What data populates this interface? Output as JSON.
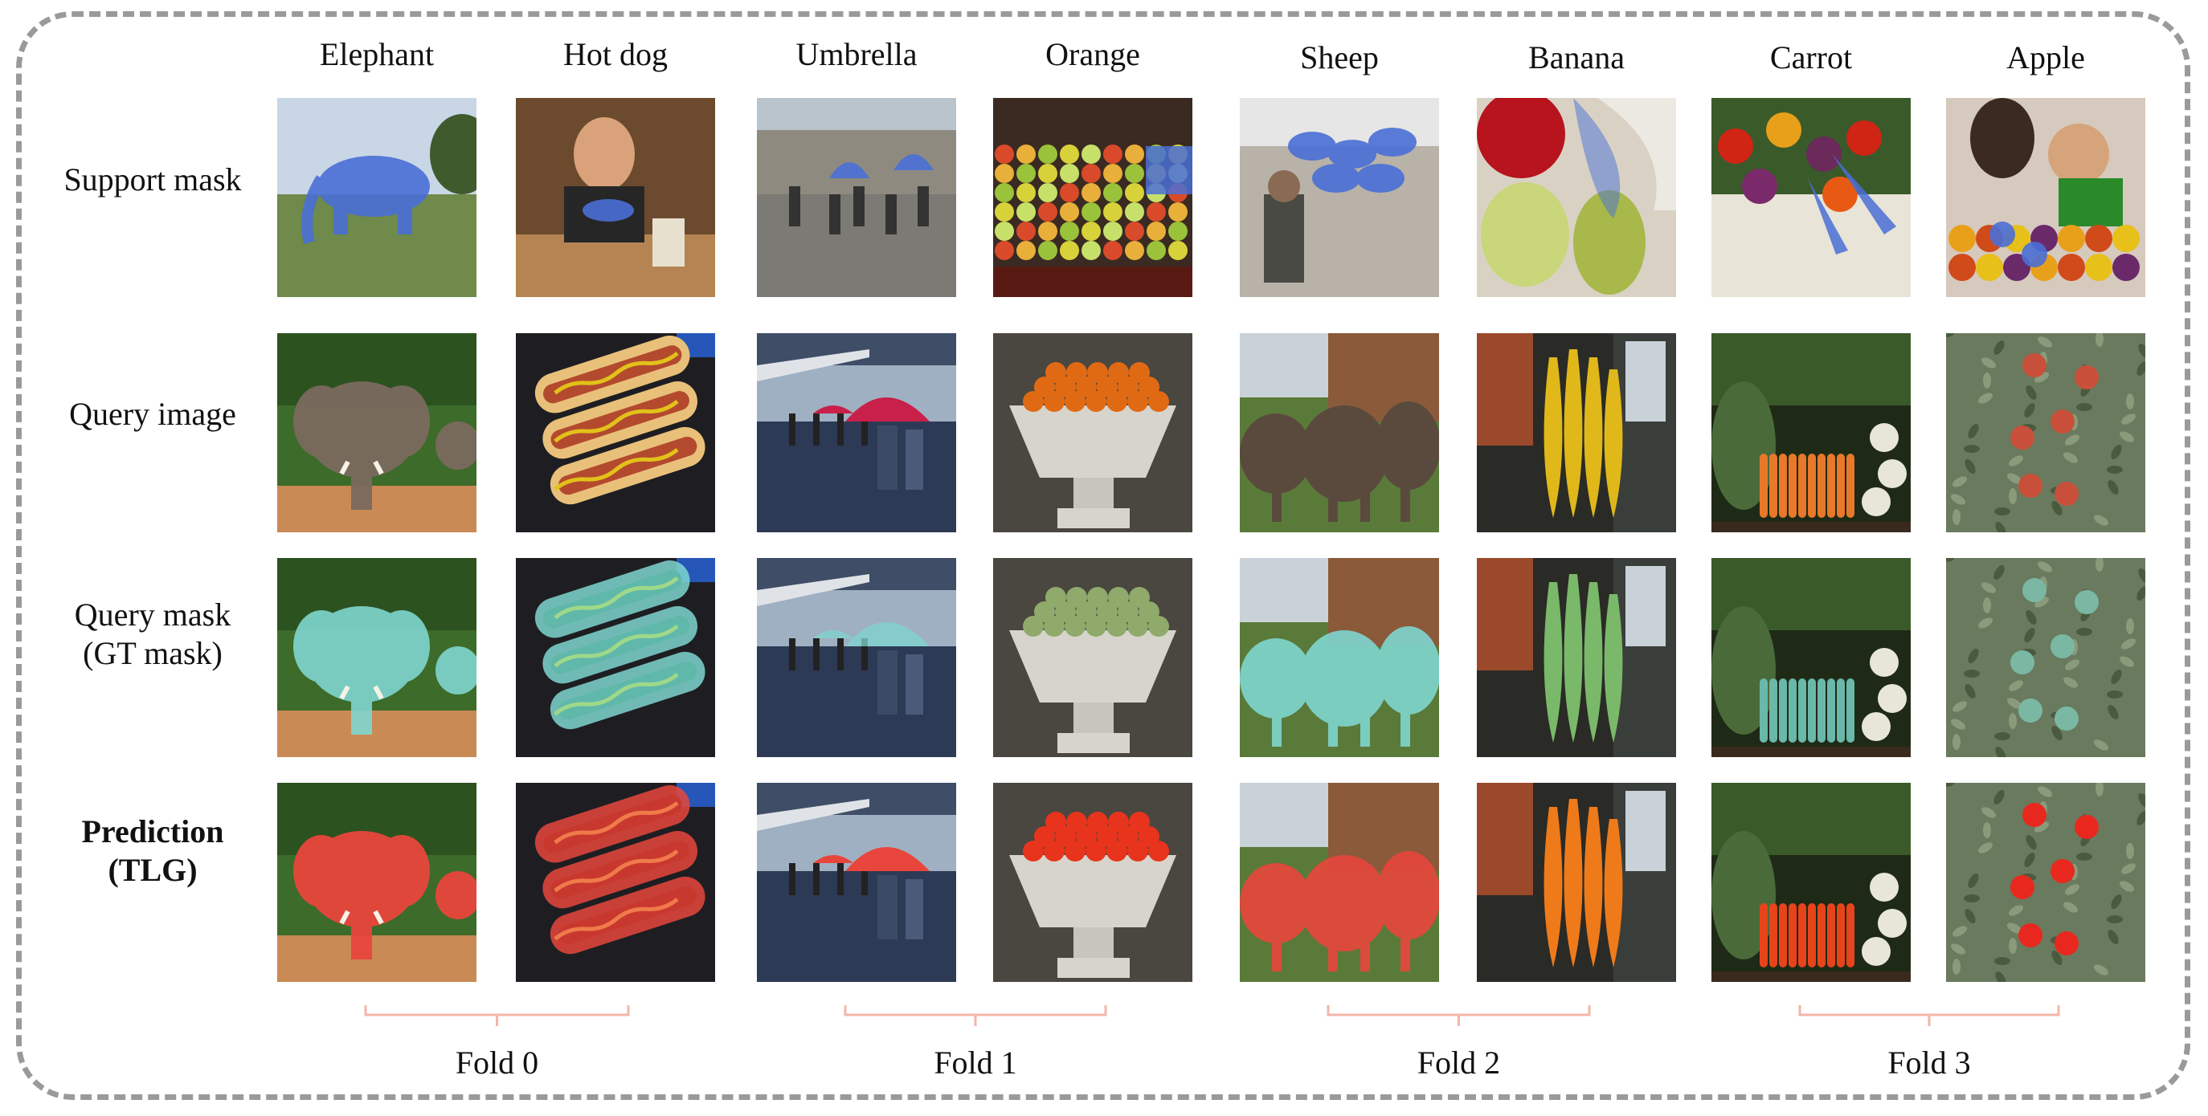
{
  "categories": [
    "Elephant",
    "Hot dog",
    "Umbrella",
    "Orange",
    "Sheep",
    "Banana",
    "Carrot",
    "Apple"
  ],
  "rows": [
    {
      "label_lines": [
        "Support mask"
      ],
      "kind": "support",
      "bold": false
    },
    {
      "label_lines": [
        "Query image"
      ],
      "kind": "query",
      "bold": false
    },
    {
      "label_lines": [
        "Query mask",
        "(GT mask)"
      ],
      "kind": "gt",
      "bold": false
    },
    {
      "label_lines": [
        "Prediction",
        "(TLG)"
      ],
      "kind": "pred",
      "bold": true
    }
  ],
  "folds": [
    "Fold 0",
    "Fold 1",
    "Fold 2",
    "Fold 3"
  ],
  "colors": {
    "frame": "#9a9a9a",
    "brace": "#f3b6a8",
    "support_mask": "#4a6fd6",
    "gt_mask": "#7fd6cf",
    "pred_mask": "#e8463c"
  },
  "icons": {
    "Elephant": "elephant-shape",
    "Hot dog": "hotdog-shape",
    "Umbrella": "umbrella-shape",
    "Orange": "orange-shape",
    "Sheep": "sheep-shape",
    "Banana": "banana-shape",
    "Carrot": "carrot-shape",
    "Apple": "apple-shape"
  }
}
